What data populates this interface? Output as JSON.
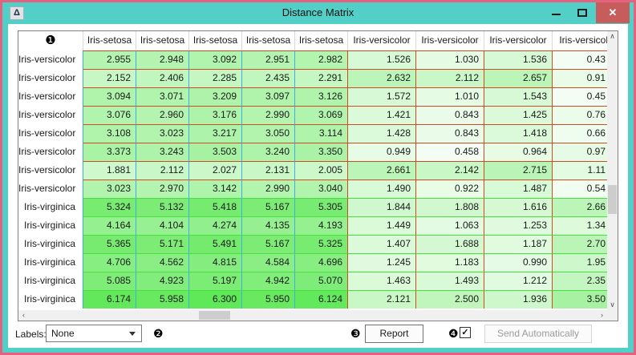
{
  "window": {
    "title": "Distance Matrix",
    "icon_glyph": "Δ",
    "close_glyph": "✕"
  },
  "theme": {
    "frame": "#52cfc6",
    "outer_border": "#e5627e",
    "close_bg": "#c75c5c",
    "class_colors": {
      "setosa": "#3ab1e6",
      "versicolor": "#d14a24",
      "virginica": "#46e23c"
    },
    "cell_green_max": "#5fe857"
  },
  "matrix": {
    "corner_badge": "❶",
    "value_max": 6.3,
    "columns": [
      {
        "label": "Iris-setosa",
        "class": "setosa"
      },
      {
        "label": "Iris-setosa",
        "class": "setosa"
      },
      {
        "label": "Iris-setosa",
        "class": "setosa"
      },
      {
        "label": "Iris-setosa",
        "class": "setosa"
      },
      {
        "label": "Iris-setosa",
        "class": "setosa"
      },
      {
        "label": "Iris-versicolor",
        "class": "versicolor"
      },
      {
        "label": "Iris-versicolor",
        "class": "versicolor"
      },
      {
        "label": "Iris-versicolor",
        "class": "versicolor"
      },
      {
        "label": "Iris-versicolo",
        "class": "versicolor"
      }
    ],
    "rows": [
      {
        "label": "Iris-versicolor",
        "class": "versicolor",
        "values": [
          "2.955",
          "2.948",
          "3.092",
          "2.951",
          "2.982",
          "1.526",
          "1.030",
          "1.536",
          "0.43"
        ]
      },
      {
        "label": "Iris-versicolor",
        "class": "versicolor",
        "values": [
          "2.152",
          "2.406",
          "2.285",
          "2.435",
          "2.291",
          "2.632",
          "2.112",
          "2.657",
          "0.91"
        ]
      },
      {
        "label": "Iris-versicolor",
        "class": "versicolor",
        "values": [
          "3.094",
          "3.071",
          "3.209",
          "3.097",
          "3.126",
          "1.572",
          "1.010",
          "1.543",
          "0.45"
        ]
      },
      {
        "label": "Iris-versicolor",
        "class": "versicolor",
        "values": [
          "3.076",
          "2.960",
          "3.176",
          "2.990",
          "3.069",
          "1.421",
          "0.843",
          "1.425",
          "0.76"
        ]
      },
      {
        "label": "Iris-versicolor",
        "class": "versicolor",
        "values": [
          "3.108",
          "3.023",
          "3.217",
          "3.050",
          "3.114",
          "1.428",
          "0.843",
          "1.418",
          "0.66"
        ]
      },
      {
        "label": "Iris-versicolor",
        "class": "versicolor",
        "values": [
          "3.373",
          "3.243",
          "3.503",
          "3.240",
          "3.350",
          "0.949",
          "0.458",
          "0.964",
          "0.97"
        ]
      },
      {
        "label": "Iris-versicolor",
        "class": "versicolor",
        "values": [
          "1.881",
          "2.112",
          "2.027",
          "2.131",
          "2.005",
          "2.661",
          "2.142",
          "2.715",
          "1.11"
        ]
      },
      {
        "label": "Iris-versicolor",
        "class": "versicolor",
        "values": [
          "3.023",
          "2.970",
          "3.142",
          "2.990",
          "3.040",
          "1.490",
          "0.922",
          "1.487",
          "0.54"
        ]
      },
      {
        "label": "Iris-virginica",
        "class": "virginica",
        "values": [
          "5.324",
          "5.132",
          "5.418",
          "5.167",
          "5.305",
          "1.844",
          "1.808",
          "1.616",
          "2.66"
        ]
      },
      {
        "label": "Iris-virginica",
        "class": "virginica",
        "values": [
          "4.164",
          "4.104",
          "4.274",
          "4.135",
          "4.193",
          "1.449",
          "1.063",
          "1.253",
          "1.34"
        ]
      },
      {
        "label": "Iris-virginica",
        "class": "virginica",
        "values": [
          "5.365",
          "5.171",
          "5.491",
          "5.167",
          "5.325",
          "1.407",
          "1.688",
          "1.187",
          "2.70"
        ]
      },
      {
        "label": "Iris-virginica",
        "class": "virginica",
        "values": [
          "4.706",
          "4.562",
          "4.815",
          "4.584",
          "4.696",
          "1.245",
          "1.183",
          "0.990",
          "1.95"
        ]
      },
      {
        "label": "Iris-virginica",
        "class": "virginica",
        "values": [
          "5.085",
          "4.923",
          "5.197",
          "4.942",
          "5.070",
          "1.463",
          "1.493",
          "1.212",
          "2.35"
        ]
      },
      {
        "label": "Iris-virginica",
        "class": "virginica",
        "values": [
          "6.174",
          "5.958",
          "6.300",
          "5.950",
          "6.124",
          "2.121",
          "2.500",
          "1.936",
          "3.50"
        ]
      }
    ]
  },
  "footer": {
    "labels_label": "Labels:",
    "labels_value": "None",
    "report_label": "Report",
    "send_label": "Send Automatically",
    "checkbox_checked": true,
    "badge2": "❷",
    "badge3": "❸",
    "badge4": "❹"
  },
  "icons": {
    "scroll_up": "∧",
    "scroll_down": "∨",
    "scroll_left": "‹",
    "scroll_right": "›",
    "checkmark": "✓"
  }
}
